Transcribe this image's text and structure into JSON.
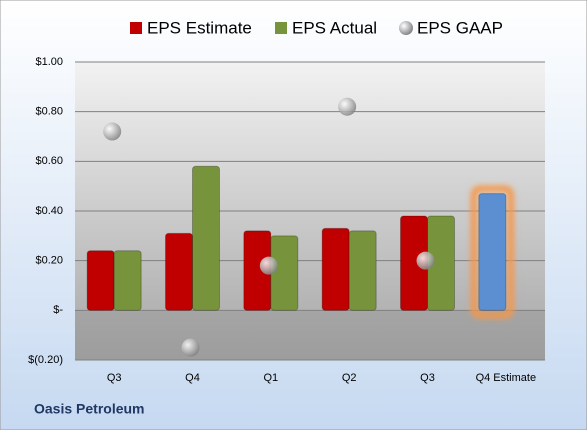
{
  "chart_data": {
    "type": "bar",
    "caption": "Oasis Petroleum",
    "categories": [
      "Q3",
      "Q4",
      "Q1",
      "Q2",
      "Q3",
      "Q4 Estimate"
    ],
    "series": [
      {
        "name": "EPS Estimate",
        "color": "#c00000",
        "colors": [
          "#c00000",
          "#c00000",
          "#c00000",
          "#c00000",
          "#c00000",
          "#5b8fd1"
        ],
        "values": [
          0.24,
          0.31,
          0.32,
          0.33,
          0.38,
          0.47
        ]
      },
      {
        "name": "EPS Actual",
        "color": "#77933c",
        "values": [
          0.24,
          0.58,
          0.3,
          0.32,
          0.38,
          null
        ]
      },
      {
        "name": "EPS GAAP",
        "type": "scatter",
        "color": "#a6a6a6",
        "values": [
          0.72,
          -0.15,
          0.18,
          0.82,
          0.2,
          null
        ]
      }
    ],
    "highlight_color": "#f79646",
    "ylim": [
      -0.2,
      1.0
    ],
    "yticks": [
      {
        "value": -0.2,
        "label": "$(0.20)"
      },
      {
        "value": 0,
        "label": "$-"
      },
      {
        "value": 0.2,
        "label": "$0.20"
      },
      {
        "value": 0.4,
        "label": "$0.40"
      },
      {
        "value": 0.6,
        "label": "$0.60"
      },
      {
        "value": 0.8,
        "label": "$0.80"
      },
      {
        "value": 1.0,
        "label": "$1.00"
      }
    ],
    "grid": true
  }
}
